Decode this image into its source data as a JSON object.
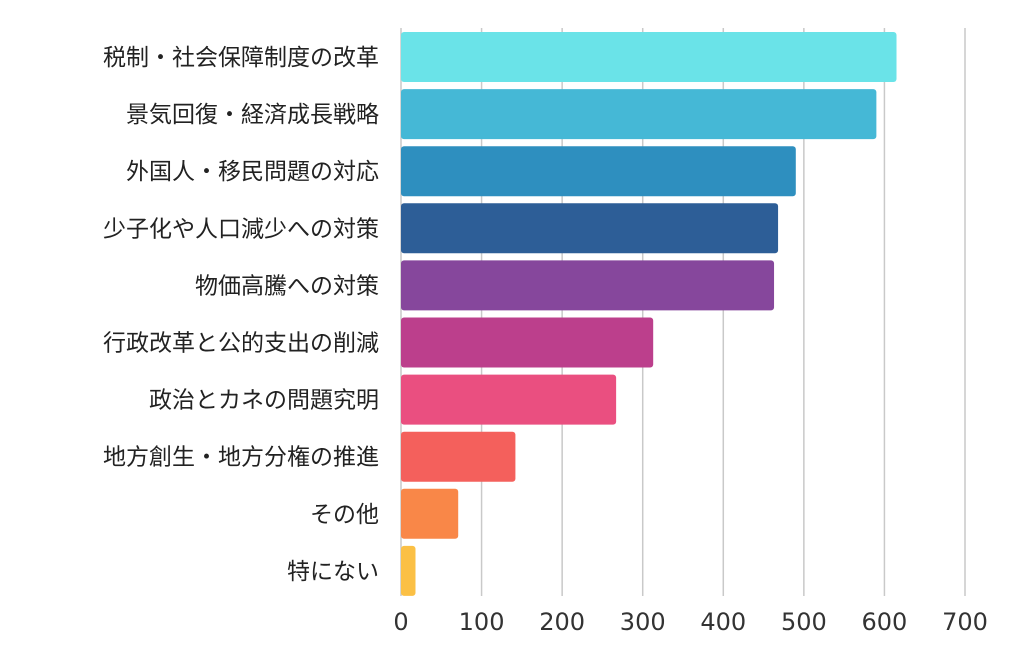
{
  "chart_data": {
    "type": "bar",
    "orientation": "horizontal",
    "categories": [
      "税制・社会保障制度の改革",
      "景気回復・経済成長戦略",
      "外国人・移民問題の対応",
      "少子化や人口減少への対策",
      "物価高騰への対策",
      "行政改革と公的支出の削減",
      "政治とカネの問題究明",
      "地方創生・地方分権の推進",
      "その他",
      "特にない"
    ],
    "values": [
      615,
      590,
      490,
      468,
      463,
      313,
      267,
      142,
      71,
      18
    ],
    "colors": [
      "#6ae3e8",
      "#45b8d6",
      "#2e8fbf",
      "#2d5e97",
      "#86479c",
      "#bc3f8c",
      "#ea4f80",
      "#f4605c",
      "#f98748",
      "#fbc045"
    ],
    "xlim": [
      0,
      700
    ],
    "xticks": [
      "0",
      "100",
      "200",
      "300",
      "400",
      "500",
      "600",
      "700"
    ],
    "xlabel": "",
    "ylabel": "",
    "grid": "vertical"
  }
}
